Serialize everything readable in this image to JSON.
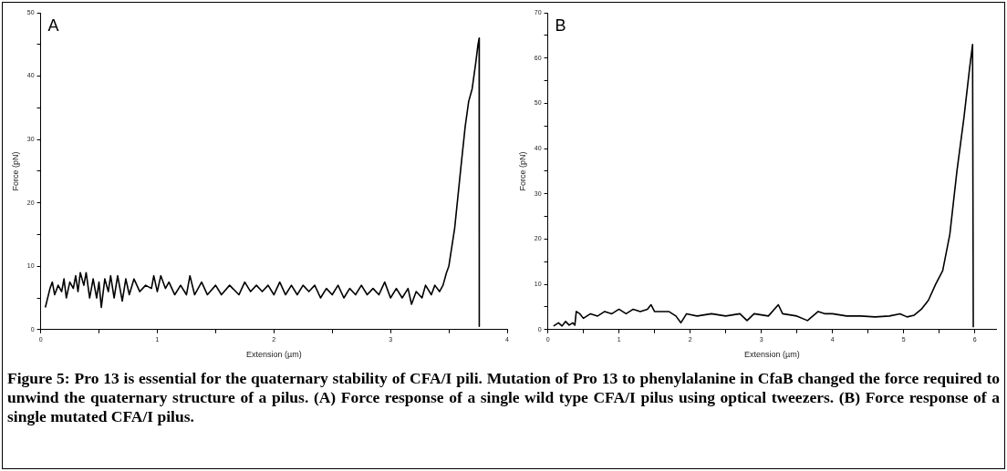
{
  "chart_data": [
    {
      "type": "line",
      "title": "A",
      "xlabel": "Extension (µm)",
      "ylabel": "Force (pN)",
      "xlim": [
        0,
        4
      ],
      "ylim": [
        0,
        50
      ],
      "xticks": [
        0,
        {
          "value": 0.5,
          "label": null
        },
        1,
        {
          "value": 1.5,
          "label": null
        },
        2,
        {
          "value": 2.5,
          "label": null
        },
        3,
        {
          "value": 3.5,
          "label": null
        },
        4
      ],
      "yticks": [
        0,
        {
          "value": 5,
          "label": null
        },
        10,
        {
          "value": 15,
          "label": null
        },
        20,
        {
          "value": 25,
          "label": null
        },
        30,
        {
          "value": 35,
          "label": null
        },
        40,
        {
          "value": 45,
          "label": null
        },
        50
      ],
      "series": [
        {
          "color": "#000000",
          "x": [
            0.04,
            0.08,
            0.1,
            0.12,
            0.15,
            0.18,
            0.2,
            0.22,
            0.25,
            0.28,
            0.3,
            0.32,
            0.34,
            0.37,
            0.39,
            0.42,
            0.45,
            0.48,
            0.5,
            0.52,
            0.55,
            0.58,
            0.6,
            0.63,
            0.66,
            0.7,
            0.73,
            0.76,
            0.8,
            0.85,
            0.9,
            0.95,
            0.97,
            1.0,
            1.03,
            1.07,
            1.1,
            1.15,
            1.2,
            1.25,
            1.28,
            1.32,
            1.38,
            1.43,
            1.5,
            1.55,
            1.62,
            1.7,
            1.75,
            1.8,
            1.85,
            1.9,
            1.95,
            2.0,
            2.05,
            2.1,
            2.15,
            2.2,
            2.25,
            2.3,
            2.35,
            2.4,
            2.45,
            2.5,
            2.55,
            2.6,
            2.65,
            2.7,
            2.75,
            2.8,
            2.85,
            2.9,
            2.95,
            3.0,
            3.05,
            3.1,
            3.15,
            3.18,
            3.22,
            3.27,
            3.3,
            3.35,
            3.38,
            3.42,
            3.45,
            3.48,
            3.5,
            3.55,
            3.6,
            3.64,
            3.67,
            3.7,
            3.73,
            3.75,
            3.76,
            3.761
          ],
          "values": [
            3.5,
            6.5,
            7.5,
            5.5,
            7,
            6,
            8,
            5,
            7.5,
            6.5,
            8.5,
            6,
            9,
            7,
            9,
            5,
            8,
            5,
            7.5,
            3.5,
            8,
            6,
            8.5,
            5,
            8.5,
            4.5,
            8,
            5.5,
            8,
            6,
            7,
            6.5,
            8.5,
            6,
            8.5,
            6.5,
            7.5,
            5.5,
            7,
            5.5,
            8.5,
            5.5,
            7.5,
            5.5,
            7,
            5.5,
            7,
            5.5,
            7.5,
            6,
            7,
            6,
            7,
            5.5,
            7.5,
            5.5,
            7,
            5.5,
            7,
            6,
            7,
            5,
            6.5,
            5.5,
            7,
            5,
            6.5,
            5.5,
            7,
            5.5,
            6.5,
            5.5,
            7.5,
            5,
            6.5,
            5,
            6.5,
            4,
            6,
            5,
            7,
            5.5,
            7,
            6,
            7,
            9,
            10,
            16,
            25,
            32,
            36,
            38,
            42,
            45,
            46,
            0.5
          ]
        }
      ],
      "annotations": [
        "Figure 5: Pro 13 is essential for the quaternary stability of CFA/I pili. Mutation of Pro 13 to phenylalanine in CfaB changed the force required to unwind the quaternary structure of a pilus. (A) Force response of a single wild type CFA/I pilus using optical tweezers. (B) Force response of a single mutated CFA/I pilus."
      ]
    },
    {
      "type": "line",
      "title": "B",
      "xlabel": "Extension (µm)",
      "ylabel": "Force (pN)",
      "xlim": [
        0,
        6.3
      ],
      "ylim": [
        0,
        70
      ],
      "xticks": [
        0,
        {
          "value": 0.5,
          "label": null
        },
        1,
        {
          "value": 1.5,
          "label": null
        },
        2,
        {
          "value": 2.5,
          "label": null
        },
        3,
        {
          "value": 3.5,
          "label": null
        },
        4,
        {
          "value": 4.5,
          "label": null
        },
        5,
        {
          "value": 5.5,
          "label": null
        },
        6
      ],
      "yticks": [
        0,
        {
          "value": 5,
          "label": null
        },
        10,
        {
          "value": 15,
          "label": null
        },
        20,
        {
          "value": 25,
          "label": null
        },
        30,
        {
          "value": 35,
          "label": null
        },
        40,
        {
          "value": 45,
          "label": null
        },
        50,
        {
          "value": 55,
          "label": null
        },
        60,
        {
          "value": 65,
          "label": null
        },
        70
      ],
      "series": [
        {
          "color": "#000000",
          "x": [
            0.08,
            0.15,
            0.2,
            0.25,
            0.3,
            0.35,
            0.38,
            0.4,
            0.45,
            0.5,
            0.6,
            0.7,
            0.8,
            0.9,
            1.0,
            1.1,
            1.2,
            1.3,
            1.4,
            1.45,
            1.5,
            1.6,
            1.7,
            1.8,
            1.87,
            1.95,
            2.1,
            2.3,
            2.5,
            2.7,
            2.8,
            2.9,
            3.1,
            3.24,
            3.3,
            3.5,
            3.65,
            3.8,
            3.9,
            4.0,
            4.2,
            4.4,
            4.6,
            4.8,
            4.95,
            5.05,
            5.15,
            5.25,
            5.35,
            5.45,
            5.55,
            5.65,
            5.75,
            5.85,
            5.93,
            5.97,
            5.98
          ],
          "values": [
            0.8,
            1.5,
            0.8,
            1.8,
            1,
            1.5,
            1,
            4,
            3.5,
            2.5,
            3.5,
            3,
            4,
            3.5,
            4.5,
            3.5,
            4.5,
            4,
            4.5,
            5.5,
            4,
            4,
            4,
            3,
            1.5,
            3.5,
            3,
            3.5,
            3,
            3.5,
            2,
            3.5,
            3,
            5.5,
            3.5,
            3,
            2,
            4,
            3.5,
            3.5,
            3,
            3,
            2.8,
            3,
            3.5,
            2.8,
            3.2,
            4.5,
            6.5,
            10,
            13,
            21,
            35,
            47,
            58,
            63,
            0.5
          ]
        }
      ]
    }
  ]
}
